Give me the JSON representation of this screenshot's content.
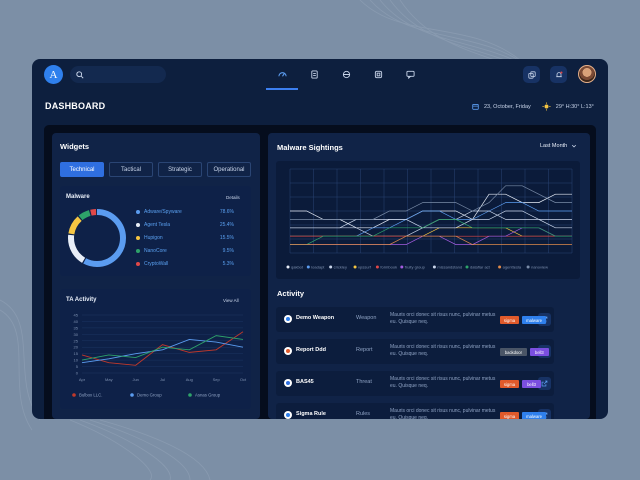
{
  "header": {
    "logo_letter": "A",
    "page_title": "DASHBOARD",
    "date": "23, October, Friday",
    "weather": "29° H:30° L:13°"
  },
  "widgets": {
    "title": "Widgets",
    "tabs": [
      "Technical",
      "Tactical",
      "Strategic",
      "Operational"
    ],
    "active_tab": "Technical"
  },
  "malware": {
    "title": "Malware",
    "details_label": "Details",
    "items": [
      {
        "label": "Adware/Spyware",
        "pct": "78.6%",
        "color": "#5b9cf0"
      },
      {
        "label": "Agent Tesla",
        "pct": "25.4%",
        "color": "#e8eef8"
      },
      {
        "label": "Hupigon",
        "pct": "15.5%",
        "color": "#f5c542"
      },
      {
        "label": "NanoCore",
        "pct": "9.5%",
        "color": "#2ea36a"
      },
      {
        "label": "CryptoWall",
        "pct": "5.3%",
        "color": "#e04848"
      }
    ]
  },
  "ta_activity": {
    "title": "TA Activity",
    "view_all_label": "View All",
    "chart_data": {
      "type": "line",
      "categories": [
        "Apr",
        "May",
        "Jun",
        "Jul",
        "Aug",
        "Sep",
        "Oct"
      ],
      "ylim": [
        0,
        45
      ],
      "yticks": [
        0,
        5,
        10,
        15,
        20,
        25,
        30,
        35,
        40,
        45
      ],
      "series": [
        {
          "name": "Bulbox LLC.",
          "color": "#c0392b",
          "values": [
            14,
            8,
            6,
            22,
            16,
            18,
            32
          ]
        },
        {
          "name": "Demo Group",
          "color": "#5b9cf0",
          "values": [
            8,
            11,
            15,
            18,
            26,
            24,
            20
          ]
        },
        {
          "name": "Asnas Group",
          "color": "#2ea36a",
          "values": [
            10,
            14,
            12,
            20,
            18,
            29,
            26
          ]
        }
      ]
    }
  },
  "sightings": {
    "title": "Malware Sightings",
    "range_label": "Last Month",
    "chart_data": {
      "type": "line",
      "grid": true,
      "x": [
        0,
        1,
        2,
        3,
        4,
        5,
        6,
        7,
        8,
        9,
        10,
        11,
        12,
        13,
        14,
        15,
        16,
        17
      ],
      "ylim": [
        0,
        10
      ],
      "series": [
        {
          "name": "qakbot",
          "color": "#e8eef8",
          "values": [
            5,
            5,
            4,
            4,
            3,
            3,
            4,
            4,
            5,
            5,
            5,
            4,
            7,
            7,
            6,
            6,
            7,
            7
          ]
        },
        {
          "name": "loadapt",
          "color": "#5b9cf0",
          "values": [
            2,
            2,
            2,
            2,
            2,
            3,
            3,
            4,
            5,
            5,
            4,
            4,
            5,
            6,
            6,
            5,
            5,
            5
          ]
        },
        {
          "name": "crickley",
          "color": "#c9d5ea",
          "values": [
            3,
            3,
            3,
            3,
            3,
            2,
            2,
            2,
            3,
            4,
            4,
            5,
            5,
            4,
            4,
            4,
            3,
            3
          ]
        },
        {
          "name": "vpssurf",
          "color": "#f5c542",
          "values": [
            2,
            2,
            2,
            2,
            2,
            2,
            2,
            2,
            2,
            3,
            3,
            3,
            3,
            3,
            2,
            2,
            2,
            2
          ]
        },
        {
          "name": "formbook",
          "color": "#e04848",
          "values": [
            2,
            2,
            2,
            2,
            2,
            2,
            2,
            2,
            2,
            2,
            2,
            2,
            2,
            2,
            2,
            2,
            2,
            2
          ]
        },
        {
          "name": "fruity group",
          "color": "#a45ce0",
          "values": [
            1,
            1,
            1,
            1,
            1,
            1,
            1,
            1,
            2,
            2,
            1,
            1,
            2,
            2,
            3,
            3,
            2,
            2
          ]
        },
        {
          "name": "missandstand",
          "color": "#c9d5ea",
          "values": [
            3,
            3,
            3,
            3,
            4,
            4,
            4,
            4,
            3,
            3,
            3,
            4,
            4,
            5,
            5,
            4,
            4,
            4
          ]
        },
        {
          "name": "dataflar act",
          "color": "#2ea36a",
          "values": [
            1,
            1,
            2,
            2,
            2,
            2,
            3,
            3,
            3,
            4,
            4,
            3,
            3,
            3,
            3,
            3,
            2,
            2
          ]
        },
        {
          "name": "agenttesla",
          "color": "#e08a4a",
          "values": [
            1,
            1,
            1,
            1,
            1,
            1,
            1,
            2,
            2,
            2,
            2,
            1,
            1,
            1,
            1,
            1,
            1,
            1
          ]
        },
        {
          "name": "nanoview",
          "color": "#7a8ca8",
          "values": [
            4,
            4,
            4,
            4,
            4,
            4,
            5,
            5,
            6,
            6,
            6,
            5,
            6,
            8,
            8,
            7,
            6,
            6
          ]
        }
      ]
    }
  },
  "activity": {
    "title": "Activity",
    "rows": [
      {
        "name": "Demo Weapon",
        "type": "Weapon",
        "desc": "Mauris orci donec sit risus nunc, pulvinar metus eu. Quisque neq.",
        "tags": [
          {
            "label": "sigma",
            "color": "#e05a2b"
          },
          {
            "label": "malware",
            "color": "#2f80ed"
          }
        ],
        "icon_color": "#2f80ed"
      },
      {
        "name": "Report Ddd",
        "type": "Report",
        "desc": "Mauris orci donec sit risus nunc, pulvinar metus eu. Quisque neq.",
        "tags": [
          {
            "label": "backdoor",
            "color": "#4a5566"
          },
          {
            "label": "bell3",
            "color": "#7b4fe0"
          }
        ],
        "icon_color": "#e05a2b"
      },
      {
        "name": "BAS45",
        "type": "Threat",
        "desc": "Mauris orci donec sit risus nunc, pulvinar metus eu. Quisque neq.",
        "tags": [
          {
            "label": "sigma",
            "color": "#e05a2b"
          },
          {
            "label": "bell3",
            "color": "#7b4fe0"
          }
        ],
        "icon_color": "#2f6fe0"
      },
      {
        "name": "Sigma Rule",
        "type": "Rules",
        "desc": "Mauris orci donec sit risus nunc, pulvinar metus eu. Quisque neq.",
        "tags": [
          {
            "label": "sigma",
            "color": "#e05a2b"
          },
          {
            "label": "malware",
            "color": "#2f80ed"
          }
        ],
        "icon_color": "#2f80ed"
      }
    ]
  },
  "icons": {
    "nav": [
      "gauge-icon",
      "document-icon",
      "bug-icon",
      "cube-icon",
      "chat-icon"
    ],
    "right": [
      "copy-icon",
      "bell-icon"
    ]
  }
}
